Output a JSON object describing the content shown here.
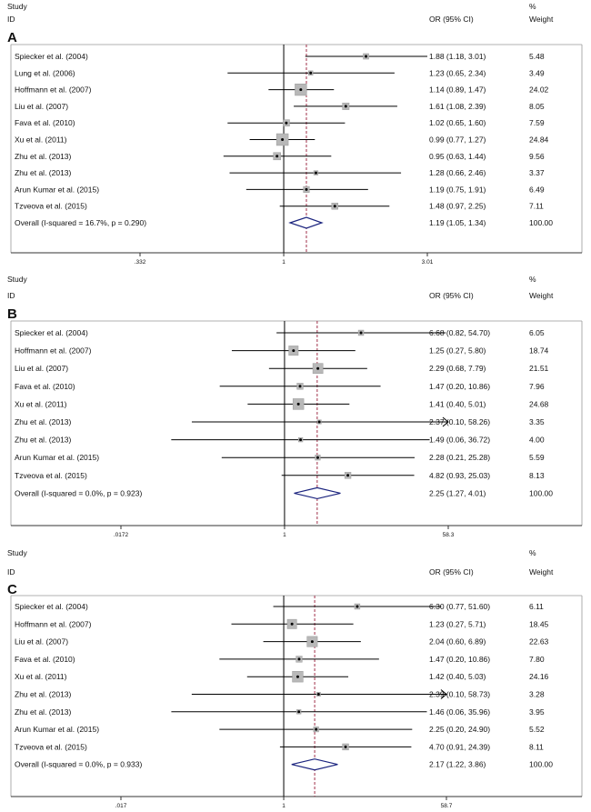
{
  "header_labels": {
    "study": "Study",
    "id": "ID",
    "or_ci": "OR (95% CI)",
    "pct": "%",
    "weight": "Weight"
  },
  "chart_data": [
    {
      "type": "forest",
      "panel": "A",
      "scale": "log",
      "xlim": [
        0.332,
        3.01
      ],
      "ticks": [
        {
          "value": 0.332,
          "label": ".332"
        },
        {
          "value": 1,
          "label": "1"
        },
        {
          "value": 3.01,
          "label": "3.01"
        }
      ],
      "overall_or": 1.19,
      "studies": [
        {
          "name": "Spiecker et al. (2004)",
          "or": 1.88,
          "lo": 1.18,
          "hi": 3.01,
          "ci_text": "1.88 (1.18, 3.01)",
          "weight": 5.48,
          "weight_text": "5.48"
        },
        {
          "name": "Lung  et al. (2006)",
          "or": 1.23,
          "lo": 0.65,
          "hi": 2.34,
          "ci_text": "1.23 (0.65, 2.34)",
          "weight": 3.49,
          "weight_text": "3.49"
        },
        {
          "name": "Hoffmann et al. (2007)",
          "or": 1.14,
          "lo": 0.89,
          "hi": 1.47,
          "ci_text": "1.14 (0.89, 1.47)",
          "weight": 24.02,
          "weight_text": "24.02"
        },
        {
          "name": "Liu et al. (2007)",
          "or": 1.61,
          "lo": 1.08,
          "hi": 2.39,
          "ci_text": "1.61 (1.08, 2.39)",
          "weight": 8.05,
          "weight_text": "8.05"
        },
        {
          "name": "Fava et al. (2010)",
          "or": 1.02,
          "lo": 0.65,
          "hi": 1.6,
          "ci_text": "1.02 (0.65, 1.60)",
          "weight": 7.59,
          "weight_text": "7.59"
        },
        {
          "name": "Xu et al. (2011)",
          "or": 0.99,
          "lo": 0.77,
          "hi": 1.27,
          "ci_text": "0.99 (0.77, 1.27)",
          "weight": 24.84,
          "weight_text": "24.84"
        },
        {
          "name": "Zhu et al. (2013)",
          "or": 0.95,
          "lo": 0.63,
          "hi": 1.44,
          "ci_text": "0.95 (0.63, 1.44)",
          "weight": 9.56,
          "weight_text": "9.56"
        },
        {
          "name": "Zhu et al. (2013)",
          "or": 1.28,
          "lo": 0.66,
          "hi": 2.46,
          "ci_text": "1.28 (0.66, 2.46)",
          "weight": 3.37,
          "weight_text": "3.37"
        },
        {
          "name": "Arun Kumar et al. (2015)",
          "or": 1.19,
          "lo": 0.75,
          "hi": 1.91,
          "ci_text": "1.19 (0.75, 1.91)",
          "weight": 6.49,
          "weight_text": "6.49"
        },
        {
          "name": "Tzveova et al. (2015)",
          "or": 1.48,
          "lo": 0.97,
          "hi": 2.25,
          "ci_text": "1.48 (0.97, 2.25)",
          "weight": 7.11,
          "weight_text": "7.11"
        }
      ],
      "overall": {
        "label": "Overall  (I-squared = 16.7%, p = 0.290)",
        "or": 1.19,
        "lo": 1.05,
        "hi": 1.34,
        "ci_text": "1.19 (1.05, 1.34)",
        "weight_text": "100.00"
      }
    },
    {
      "type": "forest",
      "panel": "B",
      "scale": "log",
      "xlim": [
        0.0172,
        58.3
      ],
      "ticks": [
        {
          "value": 0.0172,
          "label": ".0172"
        },
        {
          "value": 1,
          "label": "1"
        },
        {
          "value": 58.3,
          "label": "58.3"
        }
      ],
      "overall_or": 2.25,
      "studies": [
        {
          "name": "Spiecker et al. (2004)",
          "or": 6.68,
          "lo": 0.82,
          "hi": 54.7,
          "ci_text": "6.68 (0.82, 54.70)",
          "weight": 6.05,
          "weight_text": "6.05"
        },
        {
          "name": "Hoffmann et al. (2007)",
          "or": 1.25,
          "lo": 0.27,
          "hi": 5.8,
          "ci_text": "1.25 (0.27, 5.80)",
          "weight": 18.74,
          "weight_text": "18.74"
        },
        {
          "name": "Liu et al. (2007)",
          "or": 2.29,
          "lo": 0.68,
          "hi": 7.79,
          "ci_text": "2.29 (0.68, 7.79)",
          "weight": 21.51,
          "weight_text": "21.51"
        },
        {
          "name": "Fava et al. (2010)",
          "or": 1.47,
          "lo": 0.2,
          "hi": 10.86,
          "ci_text": "1.47 (0.20, 10.86)",
          "weight": 7.96,
          "weight_text": "7.96"
        },
        {
          "name": "Xu et al. (2011)",
          "or": 1.41,
          "lo": 0.4,
          "hi": 5.01,
          "ci_text": "1.41 (0.40, 5.01)",
          "weight": 24.68,
          "weight_text": "24.68"
        },
        {
          "name": "Zhu et al. (2013)",
          "or": 2.37,
          "lo": 0.1,
          "hi": 58.26,
          "ci_text": "2.37 (0.10, 58.26)",
          "weight": 3.35,
          "weight_text": "3.35",
          "arrow": true
        },
        {
          "name": "Zhu et al. (2013)",
          "or": 1.49,
          "lo": 0.06,
          "hi": 36.72,
          "ci_text": "1.49 (0.06, 36.72)",
          "weight": 4.0,
          "weight_text": "4.00"
        },
        {
          "name": "Arun Kumar et al. (2015)",
          "or": 2.28,
          "lo": 0.21,
          "hi": 25.28,
          "ci_text": "2.28 (0.21, 25.28)",
          "weight": 5.59,
          "weight_text": "5.59"
        },
        {
          "name": "Tzveova et al. (2015)",
          "or": 4.82,
          "lo": 0.93,
          "hi": 25.03,
          "ci_text": "4.82 (0.93, 25.03)",
          "weight": 8.13,
          "weight_text": "8.13"
        }
      ],
      "overall": {
        "label": "Overall  (I-squared = 0.0%, p = 0.923)",
        "or": 2.25,
        "lo": 1.27,
        "hi": 4.01,
        "ci_text": "2.25 (1.27, 4.01)",
        "weight_text": "100.00"
      }
    },
    {
      "type": "forest",
      "panel": "C",
      "scale": "log",
      "xlim": [
        0.017,
        58.7
      ],
      "ticks": [
        {
          "value": 0.017,
          "label": ".017"
        },
        {
          "value": 1,
          "label": "1"
        },
        {
          "value": 58.7,
          "label": "58.7"
        }
      ],
      "overall_or": 2.17,
      "studies": [
        {
          "name": "Spiecker et al. (2004)",
          "or": 6.3,
          "lo": 0.77,
          "hi": 51.6,
          "ci_text": "6.30 (0.77, 51.60)",
          "weight": 6.11,
          "weight_text": "6.11"
        },
        {
          "name": "Hoffmann et al. (2007)",
          "or": 1.23,
          "lo": 0.27,
          "hi": 5.71,
          "ci_text": "1.23 (0.27, 5.71)",
          "weight": 18.45,
          "weight_text": "18.45"
        },
        {
          "name": "Liu et al. (2007)",
          "or": 2.04,
          "lo": 0.6,
          "hi": 6.89,
          "ci_text": "2.04 (0.60, 6.89)",
          "weight": 22.63,
          "weight_text": "22.63"
        },
        {
          "name": "Fava et al. (2010)",
          "or": 1.47,
          "lo": 0.2,
          "hi": 10.86,
          "ci_text": "1.47 (0.20, 10.86)",
          "weight": 7.8,
          "weight_text": "7.80"
        },
        {
          "name": "Xu et al. (2011)",
          "or": 1.42,
          "lo": 0.4,
          "hi": 5.03,
          "ci_text": "1.42 (0.40, 5.03)",
          "weight": 24.16,
          "weight_text": "24.16"
        },
        {
          "name": "Zhu et al. (2013)",
          "or": 2.39,
          "lo": 0.1,
          "hi": 58.73,
          "ci_text": "2.39 (0.10, 58.73)",
          "weight": 3.28,
          "weight_text": "3.28",
          "arrow": true
        },
        {
          "name": "Zhu et al. (2013)",
          "or": 1.46,
          "lo": 0.06,
          "hi": 35.96,
          "ci_text": "1.46 (0.06, 35.96)",
          "weight": 3.95,
          "weight_text": "3.95"
        },
        {
          "name": "Arun Kumar et al. (2015)",
          "or": 2.25,
          "lo": 0.2,
          "hi": 24.9,
          "ci_text": "2.25 (0.20, 24.90)",
          "weight": 5.52,
          "weight_text": "5.52"
        },
        {
          "name": "Tzveova et al. (2015)",
          "or": 4.7,
          "lo": 0.91,
          "hi": 24.39,
          "ci_text": "4.70 (0.91, 24.39)",
          "weight": 8.11,
          "weight_text": "8.11"
        }
      ],
      "overall": {
        "label": "Overall  (I-squared = 0.0%, p = 0.933)",
        "or": 2.17,
        "lo": 1.22,
        "hi": 3.86,
        "ci_text": "2.17 (1.22, 3.86)",
        "weight_text": "100.00"
      }
    }
  ]
}
